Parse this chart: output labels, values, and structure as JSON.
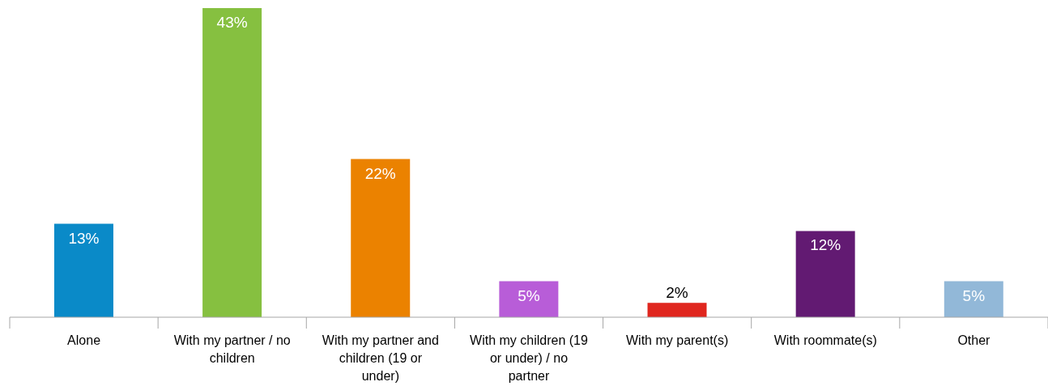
{
  "chart_data": {
    "type": "bar",
    "categories": [
      "Alone",
      "With my partner / no children",
      "With my partner and children (19 or under)",
      "With my children (19 or under) / no partner",
      "With my parent(s)",
      "With roommate(s)",
      "Other"
    ],
    "values": [
      13,
      43,
      22,
      5,
      2,
      12,
      5
    ],
    "colors": [
      "#0a8ac8",
      "#86c040",
      "#eb8200",
      "#b85dd8",
      "#e0261e",
      "#621a72",
      "#92b8d8"
    ],
    "value_labels": [
      "13%",
      "43%",
      "22%",
      "5%",
      "2%",
      "12%",
      "5%"
    ],
    "grid": false,
    "legend": false
  }
}
